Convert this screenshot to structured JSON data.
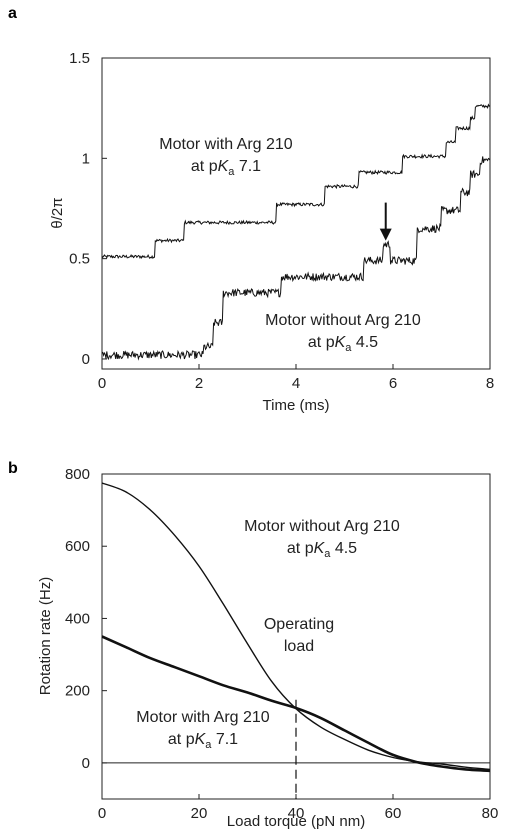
{
  "chart_data": [
    {
      "panel": "a",
      "type": "line",
      "title": "",
      "xlabel": "Time (ms)",
      "ylabel": "θ/2π",
      "xlim": [
        0,
        8
      ],
      "ylim": [
        -0.05,
        1.5
      ],
      "xticks": [
        "0",
        "2",
        "4",
        "6",
        "8"
      ],
      "xtick_values": [
        0,
        2,
        4,
        6,
        8
      ],
      "yticks": [
        "0",
        "0.5",
        "1",
        "1.5"
      ],
      "ytick_values": [
        0,
        0.5,
        1,
        1.5
      ],
      "grid": false,
      "annotations": [
        {
          "line1": "Motor with Arg 210",
          "line2_pre": "at p",
          "line2_sub_main": "K",
          "line2_sub": "a",
          "line2_post": " 7.1"
        },
        {
          "line1": "Motor without Arg 210",
          "line2_pre": "at p",
          "line2_sub_main": "K",
          "line2_sub": "a",
          "line2_post": " 4.5"
        }
      ],
      "arrow_marker": {
        "x": 5.85,
        "y": 0.57
      },
      "series": [
        {
          "steps": [
            [
              0.0,
              0.51
            ],
            [
              1.1,
              0.59
            ],
            [
              1.7,
              0.68
            ],
            [
              3.6,
              0.77
            ],
            [
              4.6,
              0.86
            ],
            [
              5.3,
              0.93
            ],
            [
              6.2,
              1.01
            ],
            [
              7.1,
              1.08
            ],
            [
              7.3,
              1.15
            ],
            [
              7.6,
              1.2
            ],
            [
              7.7,
              1.26
            ],
            [
              8.0,
              1.26
            ]
          ],
          "noise": 0.008
        },
        {
          "steps": [
            [
              0.0,
              0.02
            ],
            [
              2.1,
              0.06
            ],
            [
              2.3,
              0.18
            ],
            [
              2.5,
              0.33
            ],
            [
              3.7,
              0.41
            ],
            [
              5.4,
              0.49
            ],
            [
              5.8,
              0.57
            ],
            [
              5.95,
              0.49
            ],
            [
              6.5,
              0.65
            ],
            [
              7.0,
              0.74
            ],
            [
              7.4,
              0.83
            ],
            [
              7.6,
              0.92
            ],
            [
              7.8,
              0.99
            ],
            [
              8.0,
              0.99
            ]
          ],
          "noise": 0.02
        }
      ]
    },
    {
      "panel": "b",
      "type": "line",
      "title": "",
      "xlabel": "Load torque (pN nm)",
      "ylabel": "Rotation rate (Hz)",
      "xlim": [
        0,
        80
      ],
      "ylim": [
        -100,
        800
      ],
      "xticks": [
        "0",
        "20",
        "40",
        "60",
        "80"
      ],
      "xtick_values": [
        0,
        20,
        40,
        60,
        80
      ],
      "yticks": [
        "0",
        "200",
        "400",
        "600",
        "800"
      ],
      "ytick_values": [
        0,
        200,
        400,
        600,
        800
      ],
      "grid": false,
      "operating_load_x": 40,
      "operating_load_label": [
        "Operating",
        "load"
      ],
      "annotations": [
        {
          "line1": "Motor without Arg 210",
          "line2_pre": "at p",
          "line2_sub_main": "K",
          "line2_sub": "a",
          "line2_post": " 4.5"
        },
        {
          "line1": "Motor with Arg 210",
          "line2_pre": "at p",
          "line2_sub_main": "K",
          "line2_sub": "a",
          "line2_post": " 7.1"
        }
      ],
      "series": [
        {
          "x": [
            0,
            5,
            10,
            15,
            20,
            25,
            30,
            35,
            40,
            45,
            50,
            55,
            60,
            65,
            70,
            75,
            80
          ],
          "y": [
            775,
            750,
            700,
            630,
            545,
            440,
            330,
            225,
            150,
            100,
            65,
            35,
            15,
            3,
            -3,
            -12,
            -18
          ],
          "style": "thin"
        },
        {
          "x": [
            0,
            5,
            10,
            15,
            20,
            25,
            30,
            35,
            40,
            45,
            50,
            55,
            60,
            65,
            70,
            75,
            80
          ],
          "y": [
            350,
            320,
            290,
            265,
            240,
            215,
            195,
            172,
            152,
            125,
            90,
            55,
            22,
            2,
            -10,
            -18,
            -22
          ],
          "style": "thick"
        }
      ]
    }
  ]
}
